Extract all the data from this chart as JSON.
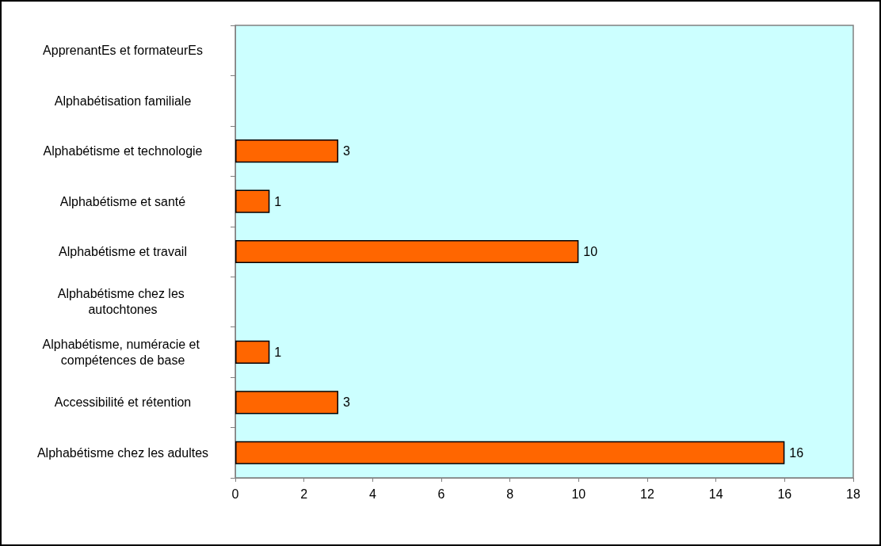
{
  "chart_data": {
    "type": "bar",
    "orientation": "horizontal",
    "categories": [
      "ApprenantEs et formateurEs",
      "Alphabétisation familiale",
      "Alphabétisme et technologie",
      "Alphabétisme et santé",
      "Alphabétisme et travail",
      "Alphabétisme chez les autochtones",
      "Alphabétisme, numéracie et compétences de base",
      "Accessibilité et rétention",
      "Alphabétisme chez les adultes"
    ],
    "values": [
      null,
      null,
      3,
      1,
      10,
      null,
      1,
      3,
      16
    ],
    "color": "#ff6600",
    "xlim": [
      0,
      18
    ],
    "xticks": [
      0,
      2,
      4,
      6,
      8,
      10,
      12,
      14,
      16,
      18
    ],
    "grid": false,
    "data_labels": true
  }
}
